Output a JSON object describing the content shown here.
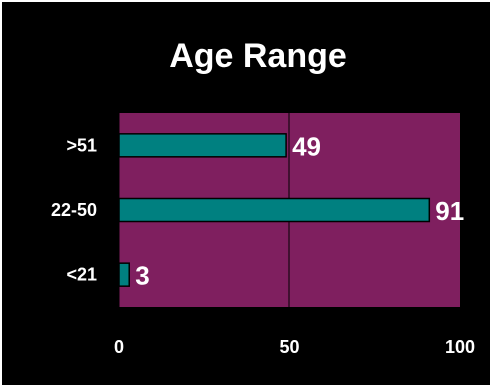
{
  "chart_data": {
    "type": "bar",
    "orientation": "horizontal",
    "title": "Age Range",
    "categories": [
      ">51",
      "22-50",
      "<21"
    ],
    "values": [
      49,
      91,
      3
    ],
    "xlim": [
      0,
      100
    ],
    "x_ticks": [
      "0",
      "50",
      "100"
    ],
    "grid": "vertical line at 50",
    "legend": "none",
    "data_labels": [
      "49",
      "91",
      "3"
    ],
    "colors": {
      "background": "#000000",
      "plot_area": "#7f1f5f",
      "bar": "#008080",
      "text": "#ffffff"
    }
  }
}
